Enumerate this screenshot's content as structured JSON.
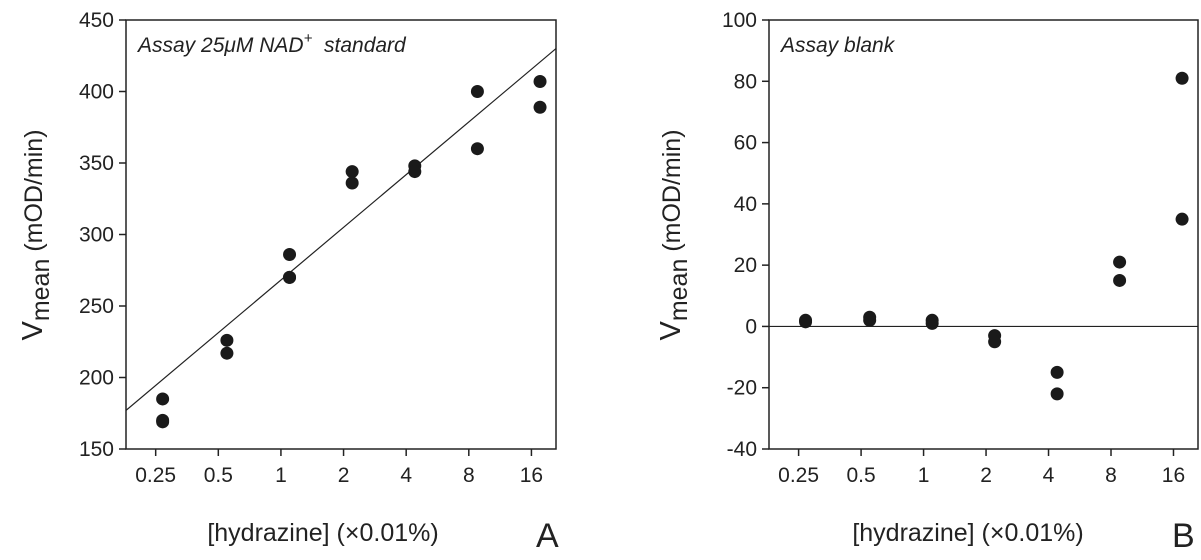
{
  "colors": {
    "ink": "#222222",
    "marker": "#1a1a1a",
    "background": "#ffffff"
  },
  "chart_data": [
    {
      "type": "scatter",
      "panel_label": "A",
      "annotation": {
        "main": "Assay 25μM NAD",
        "sup": "+",
        "rest": "  standard"
      },
      "xlabel": "[hydrazine] (×0.01%)",
      "ylabel": {
        "main": "V",
        "sub": "mean",
        "rest": " (mOD/min)"
      },
      "x_scale": "log2",
      "xlim": [
        0.18,
        21
      ],
      "ylim": [
        150,
        450
      ],
      "x_ticks": [
        0.25,
        0.5,
        1,
        2,
        4,
        8,
        16
      ],
      "x_tick_labels": [
        "0.25",
        "0.5",
        "1",
        "2",
        "4",
        "8",
        "16"
      ],
      "y_ticks": [
        150,
        200,
        250,
        300,
        350,
        400,
        450
      ],
      "y_tick_labels": [
        "150",
        "200",
        "250",
        "300",
        "350",
        "400",
        "450"
      ],
      "grid": false,
      "series": [
        {
          "points": [
            {
              "x": 0.27,
              "y": 185
            },
            {
              "x": 0.27,
              "y": 170
            },
            {
              "x": 0.27,
              "y": 169
            },
            {
              "x": 0.55,
              "y": 226
            },
            {
              "x": 0.55,
              "y": 217
            },
            {
              "x": 1.1,
              "y": 286
            },
            {
              "x": 1.1,
              "y": 270
            },
            {
              "x": 1.1,
              "y": 270
            },
            {
              "x": 2.2,
              "y": 344
            },
            {
              "x": 2.2,
              "y": 336
            },
            {
              "x": 4.4,
              "y": 348
            },
            {
              "x": 4.4,
              "y": 344
            },
            {
              "x": 8.8,
              "y": 400
            },
            {
              "x": 8.8,
              "y": 360
            },
            {
              "x": 17.6,
              "y": 407
            },
            {
              "x": 17.6,
              "y": 389
            }
          ]
        }
      ],
      "fit_line": {
        "x": [
          0.18,
          21
        ],
        "y": [
          177,
          430
        ]
      }
    },
    {
      "type": "scatter",
      "panel_label": "B",
      "annotation": {
        "main": "Assay blank",
        "sup": "",
        "rest": ""
      },
      "xlabel": "[hydrazine] (×0.01%)",
      "ylabel": {
        "main": "V",
        "sub": "mean",
        "rest": " (mOD/min)"
      },
      "x_scale": "log2",
      "xlim": [
        0.18,
        21
      ],
      "ylim": [
        -40,
        100
      ],
      "x_ticks": [
        0.25,
        0.5,
        1,
        2,
        4,
        8,
        16
      ],
      "x_tick_labels": [
        "0.25",
        "0.5",
        "1",
        "2",
        "4",
        "8",
        "16"
      ],
      "y_ticks": [
        -40,
        -20,
        0,
        20,
        40,
        60,
        80,
        100
      ],
      "y_tick_labels": [
        "-40",
        "-20",
        "0",
        "20",
        "40",
        "60",
        "80",
        "100"
      ],
      "grid": false,
      "reference_line_y": 0,
      "series": [
        {
          "points": [
            {
              "x": 0.27,
              "y": 2
            },
            {
              "x": 0.27,
              "y": 1.5
            },
            {
              "x": 0.55,
              "y": 3
            },
            {
              "x": 0.55,
              "y": 2
            },
            {
              "x": 1.1,
              "y": 2
            },
            {
              "x": 1.1,
              "y": 1
            },
            {
              "x": 2.2,
              "y": -3
            },
            {
              "x": 2.2,
              "y": -5
            },
            {
              "x": 4.4,
              "y": -15
            },
            {
              "x": 4.4,
              "y": -22
            },
            {
              "x": 8.8,
              "y": 21
            },
            {
              "x": 8.8,
              "y": 15
            },
            {
              "x": 17.6,
              "y": 81
            },
            {
              "x": 17.6,
              "y": 35
            }
          ]
        }
      ]
    }
  ]
}
